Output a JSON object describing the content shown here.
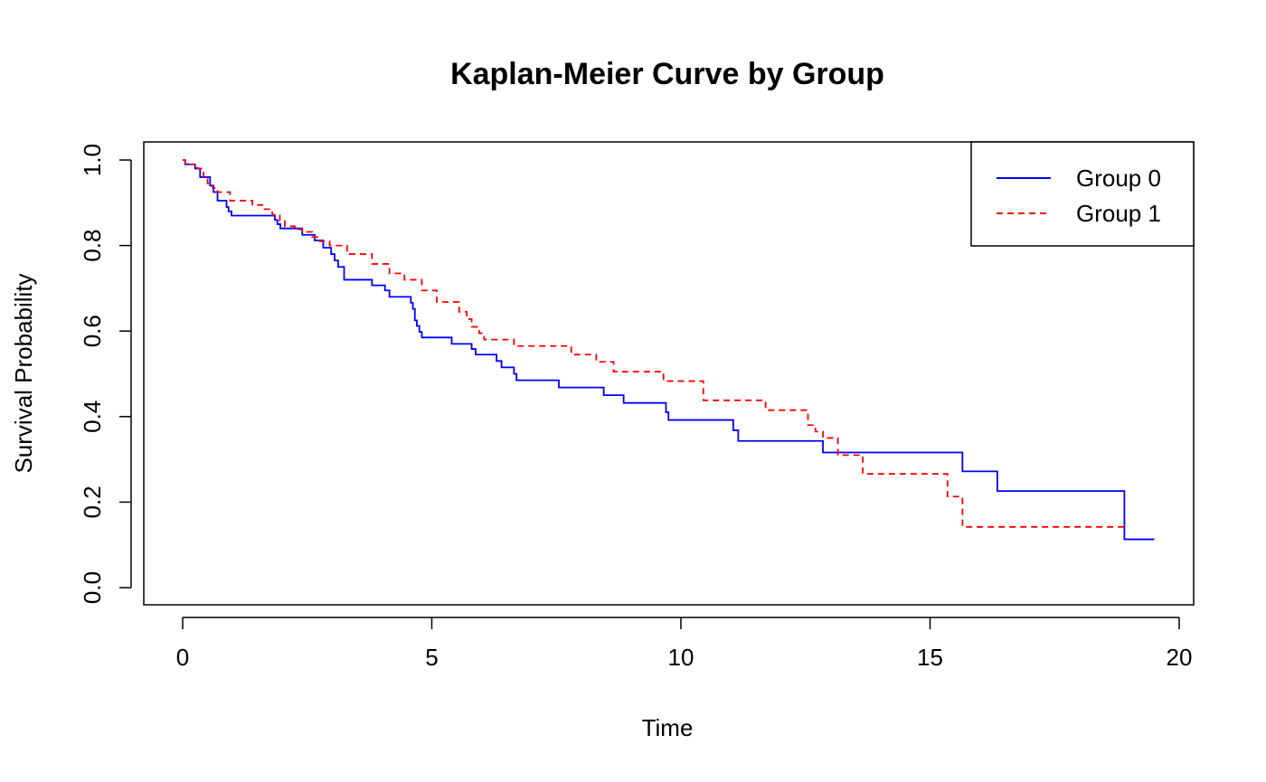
{
  "chart_data": {
    "type": "line",
    "title": "Kaplan-Meier Curve by Group",
    "xlabel": "Time",
    "ylabel": "Survival Probability",
    "xlim": [
      0,
      20
    ],
    "ylim": [
      0,
      1
    ],
    "xticks": [
      "0",
      "5",
      "10",
      "15",
      "20"
    ],
    "yticks": [
      "0.0",
      "0.2",
      "0.4",
      "0.6",
      "0.8",
      "1.0"
    ],
    "grid": false,
    "legend_position": "top-right",
    "step": true,
    "series": [
      {
        "name": "Group 0",
        "color": "#0000ff",
        "line_style": "solid",
        "x": [
          0,
          0.05,
          0.25,
          0.35,
          0.55,
          0.62,
          0.7,
          0.88,
          0.92,
          0.98,
          1.85,
          1.9,
          1.96,
          2.4,
          2.65,
          2.82,
          2.98,
          3.05,
          3.12,
          3.24,
          3.8,
          4.06,
          4.15,
          4.58,
          4.62,
          4.66,
          4.7,
          4.75,
          4.8,
          5.4,
          5.8,
          5.88,
          6.3,
          6.4,
          6.65,
          6.7,
          7.55,
          8.45,
          8.85,
          9.7,
          9.75,
          11.05,
          11.15,
          12.85,
          15.65,
          16.35,
          18.9,
          19.5
        ],
        "y": [
          1.0,
          0.99,
          0.98,
          0.96,
          0.94,
          0.925,
          0.905,
          0.89,
          0.88,
          0.87,
          0.86,
          0.85,
          0.84,
          0.825,
          0.812,
          0.795,
          0.78,
          0.765,
          0.75,
          0.72,
          0.707,
          0.695,
          0.68,
          0.666,
          0.652,
          0.625,
          0.612,
          0.598,
          0.585,
          0.57,
          0.558,
          0.545,
          0.53,
          0.515,
          0.5,
          0.485,
          0.468,
          0.45,
          0.432,
          0.41,
          0.392,
          0.368,
          0.343,
          0.316,
          0.272,
          0.226,
          0.113,
          0.113
        ]
      },
      {
        "name": "Group 1",
        "color": "#ff0000",
        "line_style": "dashed",
        "x": [
          0,
          0.05,
          0.3,
          0.42,
          0.5,
          0.6,
          0.7,
          0.95,
          1.4,
          1.6,
          1.8,
          1.95,
          2.05,
          2.25,
          2.4,
          2.6,
          2.75,
          2.95,
          3.3,
          3.8,
          4.15,
          4.45,
          4.8,
          5.1,
          5.55,
          5.7,
          5.8,
          5.95,
          6.05,
          6.65,
          7.8,
          8.3,
          8.65,
          9.65,
          10.45,
          11.7,
          12.55,
          12.7,
          12.85,
          13.15,
          13.65,
          15.35,
          15.65,
          18.9
        ],
        "y": [
          1.0,
          0.99,
          0.98,
          0.96,
          0.945,
          0.935,
          0.925,
          0.905,
          0.895,
          0.885,
          0.872,
          0.858,
          0.845,
          0.838,
          0.832,
          0.82,
          0.81,
          0.8,
          0.78,
          0.757,
          0.735,
          0.72,
          0.695,
          0.668,
          0.645,
          0.628,
          0.61,
          0.595,
          0.58,
          0.565,
          0.545,
          0.528,
          0.505,
          0.483,
          0.438,
          0.415,
          0.38,
          0.365,
          0.35,
          0.31,
          0.266,
          0.213,
          0.142,
          0.142
        ]
      }
    ]
  }
}
